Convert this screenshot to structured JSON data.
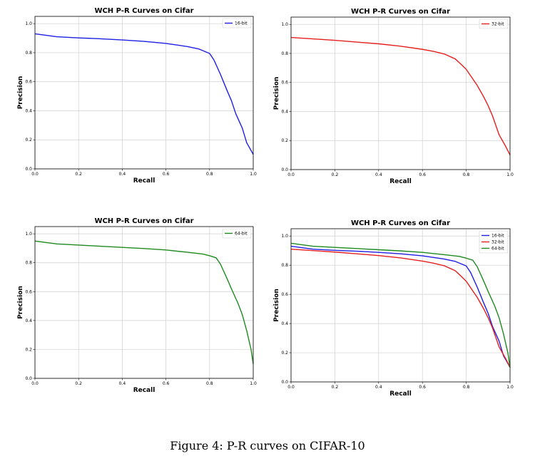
{
  "figure": {
    "caption": "Figure 4: P-R curves on CIFAR-10"
  },
  "chart_data": [
    {
      "type": "line",
      "title": "WCH P-R Curves on Cifar",
      "xlabel": "Recall",
      "ylabel": "Precision",
      "xlim": [
        0,
        1
      ],
      "ylim": [
        0,
        1.05
      ],
      "xticks": [
        "0.0",
        "0.2",
        "0.4",
        "0.6",
        "0.8",
        "1.0"
      ],
      "yticks": [
        "0.0",
        "0.2",
        "0.4",
        "0.6",
        "0.8",
        "1.0"
      ],
      "grid": true,
      "legend": "top-right",
      "series": [
        {
          "name": "16-bit",
          "color": "#1f1fe6",
          "x": [
            0,
            0.1,
            0.2,
            0.3,
            0.4,
            0.5,
            0.6,
            0.7,
            0.75,
            0.8,
            0.82,
            0.85,
            0.88,
            0.9,
            0.92,
            0.95,
            0.97,
            1.0
          ],
          "y": [
            0.93,
            0.91,
            0.902,
            0.896,
            0.888,
            0.878,
            0.864,
            0.842,
            0.826,
            0.795,
            0.75,
            0.65,
            0.54,
            0.47,
            0.38,
            0.28,
            0.18,
            0.1
          ]
        }
      ]
    },
    {
      "type": "line",
      "title": "WCH P-R Curves on Cifar",
      "xlabel": "Recall",
      "ylabel": "Precision",
      "xlim": [
        0,
        1
      ],
      "ylim": [
        0,
        1.05
      ],
      "xticks": [
        "0.0",
        "0.2",
        "0.4",
        "0.6",
        "0.8",
        "1.0"
      ],
      "yticks": [
        "0.0",
        "0.2",
        "0.4",
        "0.6",
        "0.8",
        "1.0"
      ],
      "grid": true,
      "legend": "top-right",
      "series": [
        {
          "name": "32-bit",
          "color": "#e61f1f",
          "x": [
            0,
            0.1,
            0.2,
            0.3,
            0.4,
            0.5,
            0.6,
            0.65,
            0.7,
            0.75,
            0.78,
            0.8,
            0.85,
            0.88,
            0.9,
            0.92,
            0.95,
            0.98,
            1.0
          ],
          "y": [
            0.91,
            0.9,
            0.89,
            0.878,
            0.866,
            0.85,
            0.828,
            0.814,
            0.796,
            0.762,
            0.72,
            0.69,
            0.58,
            0.5,
            0.44,
            0.37,
            0.24,
            0.16,
            0.1
          ]
        }
      ]
    },
    {
      "type": "line",
      "title": "WCH P-R Curves on Cifar",
      "xlabel": "Recall",
      "ylabel": "Precision",
      "xlim": [
        0,
        1
      ],
      "ylim": [
        0,
        1.05
      ],
      "xticks": [
        "0.0",
        "0.2",
        "0.4",
        "0.6",
        "0.8",
        "1.0"
      ],
      "yticks": [
        "0.0",
        "0.2",
        "0.4",
        "0.6",
        "0.8",
        "1.0"
      ],
      "grid": true,
      "legend": "top-right",
      "series": [
        {
          "name": "64-bit",
          "color": "#1f8a1f",
          "x": [
            0,
            0.1,
            0.2,
            0.3,
            0.4,
            0.5,
            0.6,
            0.7,
            0.77,
            0.8,
            0.83,
            0.85,
            0.88,
            0.9,
            0.93,
            0.95,
            0.97,
            0.99,
            1.0
          ],
          "y": [
            0.95,
            0.93,
            0.922,
            0.914,
            0.906,
            0.898,
            0.888,
            0.872,
            0.86,
            0.848,
            0.834,
            0.79,
            0.69,
            0.62,
            0.52,
            0.44,
            0.33,
            0.2,
            0.1
          ]
        }
      ]
    },
    {
      "type": "line",
      "title": "WCH P-R Curves on Cifar",
      "xlabel": "Recall",
      "ylabel": "Precision",
      "xlim": [
        0,
        1
      ],
      "ylim": [
        0,
        1.05
      ],
      "xticks": [
        "0.0",
        "0.2",
        "0.4",
        "0.6",
        "0.8",
        "1.0"
      ],
      "yticks": [
        "0.0",
        "0.2",
        "0.4",
        "0.6",
        "0.8",
        "1.0"
      ],
      "grid": true,
      "legend": "top-right",
      "series": [
        {
          "name": "16-bit",
          "color": "#1f1fe6",
          "x": [
            0,
            0.1,
            0.2,
            0.3,
            0.4,
            0.5,
            0.6,
            0.7,
            0.75,
            0.8,
            0.82,
            0.85,
            0.88,
            0.9,
            0.92,
            0.95,
            0.97,
            1.0
          ],
          "y": [
            0.93,
            0.91,
            0.902,
            0.896,
            0.888,
            0.878,
            0.864,
            0.842,
            0.826,
            0.795,
            0.75,
            0.65,
            0.54,
            0.47,
            0.38,
            0.28,
            0.18,
            0.1
          ]
        },
        {
          "name": "32-bit",
          "color": "#e61f1f",
          "x": [
            0,
            0.1,
            0.2,
            0.3,
            0.4,
            0.5,
            0.6,
            0.65,
            0.7,
            0.75,
            0.78,
            0.8,
            0.85,
            0.88,
            0.9,
            0.92,
            0.95,
            0.98,
            1.0
          ],
          "y": [
            0.91,
            0.9,
            0.89,
            0.878,
            0.866,
            0.85,
            0.828,
            0.814,
            0.796,
            0.762,
            0.72,
            0.69,
            0.58,
            0.5,
            0.44,
            0.37,
            0.24,
            0.16,
            0.1
          ]
        },
        {
          "name": "64-bit",
          "color": "#1f8a1f",
          "x": [
            0,
            0.1,
            0.2,
            0.3,
            0.4,
            0.5,
            0.6,
            0.7,
            0.77,
            0.8,
            0.83,
            0.85,
            0.88,
            0.9,
            0.93,
            0.95,
            0.97,
            0.99,
            1.0
          ],
          "y": [
            0.95,
            0.93,
            0.922,
            0.914,
            0.906,
            0.898,
            0.888,
            0.872,
            0.86,
            0.848,
            0.834,
            0.79,
            0.69,
            0.62,
            0.52,
            0.44,
            0.33,
            0.2,
            0.1
          ]
        }
      ]
    }
  ]
}
